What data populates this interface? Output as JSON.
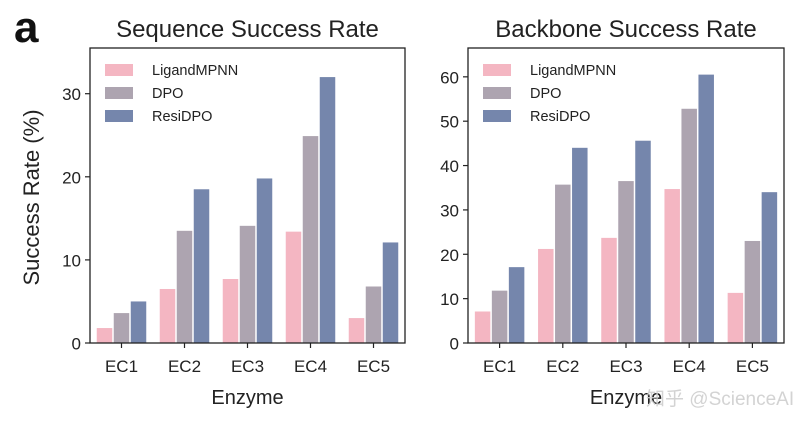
{
  "panel_label": "a",
  "watermark": "知乎 @ScienceAI",
  "colors": {
    "LigandMPNN": "#f4b6c2",
    "DPO": "#ada4b0",
    "ResiDPO": "#7586ac"
  },
  "chart_data": [
    {
      "type": "bar",
      "title": "Sequence Success Rate",
      "xlabel": "Enzyme",
      "ylabel": "Success Rate (%)",
      "categories": [
        "EC1",
        "EC2",
        "EC3",
        "EC4",
        "EC5"
      ],
      "yticks": [
        0,
        10,
        20,
        30
      ],
      "ylim": [
        0,
        35.5
      ],
      "legend_position": "top-left",
      "series": [
        {
          "name": "LigandMPNN",
          "values": [
            1.8,
            6.5,
            7.7,
            13.4,
            3.0
          ]
        },
        {
          "name": "DPO",
          "values": [
            3.6,
            13.5,
            14.1,
            24.9,
            6.8
          ]
        },
        {
          "name": "ResiDPO",
          "values": [
            5.0,
            18.5,
            19.8,
            32.0,
            12.1
          ]
        }
      ]
    },
    {
      "type": "bar",
      "title": "Backbone Success Rate",
      "xlabel": "Enzyme",
      "ylabel": "",
      "categories": [
        "EC1",
        "EC2",
        "EC3",
        "EC4",
        "EC5"
      ],
      "yticks": [
        0,
        10,
        20,
        30,
        40,
        50,
        60
      ],
      "ylim": [
        0,
        66.5
      ],
      "legend_position": "top-left",
      "series": [
        {
          "name": "LigandMPNN",
          "values": [
            7.1,
            21.2,
            23.7,
            34.7,
            11.3
          ]
        },
        {
          "name": "DPO",
          "values": [
            11.8,
            35.7,
            36.5,
            52.8,
            23.0
          ]
        },
        {
          "name": "ResiDPO",
          "values": [
            17.1,
            44.0,
            45.6,
            60.5,
            34.0
          ]
        }
      ]
    }
  ]
}
